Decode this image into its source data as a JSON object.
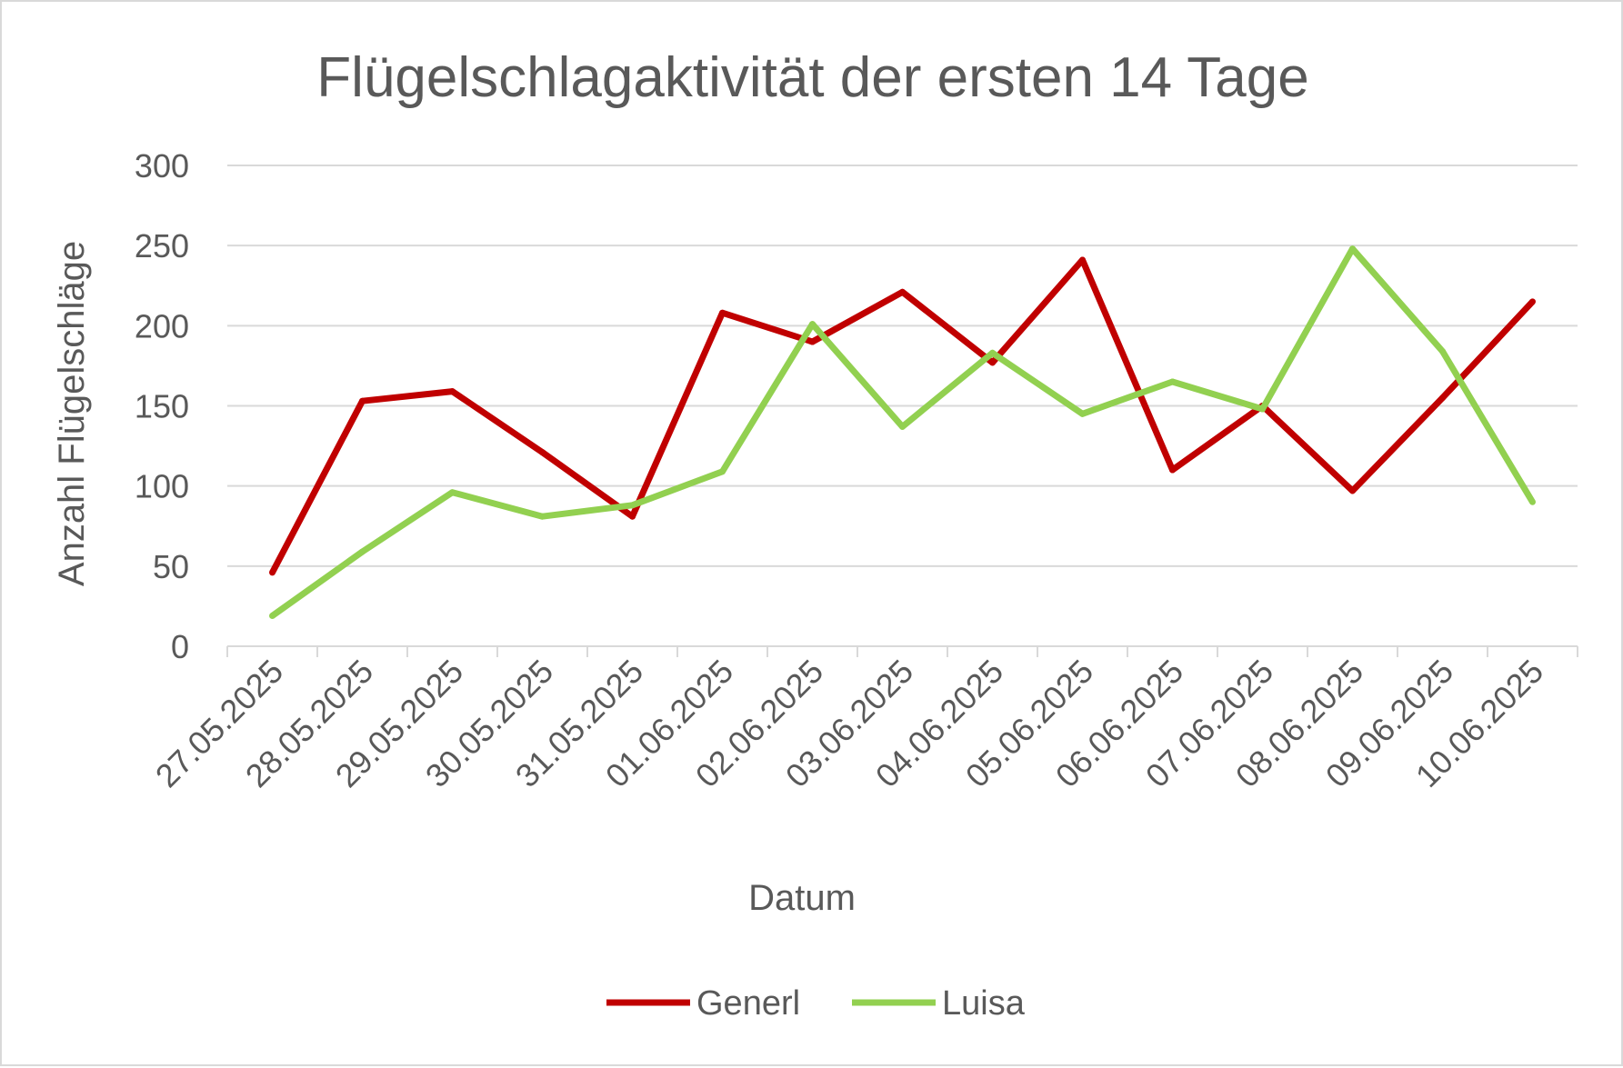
{
  "chart_data": {
    "type": "line",
    "title": "Flügelschlagaktivität der ersten 14 Tage",
    "xlabel": "Datum",
    "ylabel": "Anzahl Flügelschläge",
    "ylim": [
      0,
      300
    ],
    "yticks": [
      "0",
      "50",
      "100",
      "150",
      "200",
      "250",
      "300"
    ],
    "grid": true,
    "legend_position": "bottom",
    "categories": [
      "27.05.2025",
      "28.05.2025",
      "29.05.2025",
      "30.05.2025",
      "31.05.2025",
      "01.06.2025",
      "02.06.2025",
      "03.06.2025",
      "04.06.2025",
      "05.06.2025",
      "06.06.2025",
      "07.06.2025",
      "08.06.2025",
      "09.06.2025",
      "10.06.2025"
    ],
    "series": [
      {
        "name": "Generl",
        "color": "#c00000",
        "values": [
          46,
          153,
          159,
          121,
          81,
          208,
          190,
          221,
          177,
          241,
          110,
          150,
          97,
          155,
          215
        ]
      },
      {
        "name": "Luisa",
        "color": "#92d050",
        "values": [
          19,
          59,
          96,
          81,
          88,
          109,
          201,
          137,
          183,
          145,
          165,
          148,
          248,
          184,
          90
        ]
      }
    ]
  }
}
